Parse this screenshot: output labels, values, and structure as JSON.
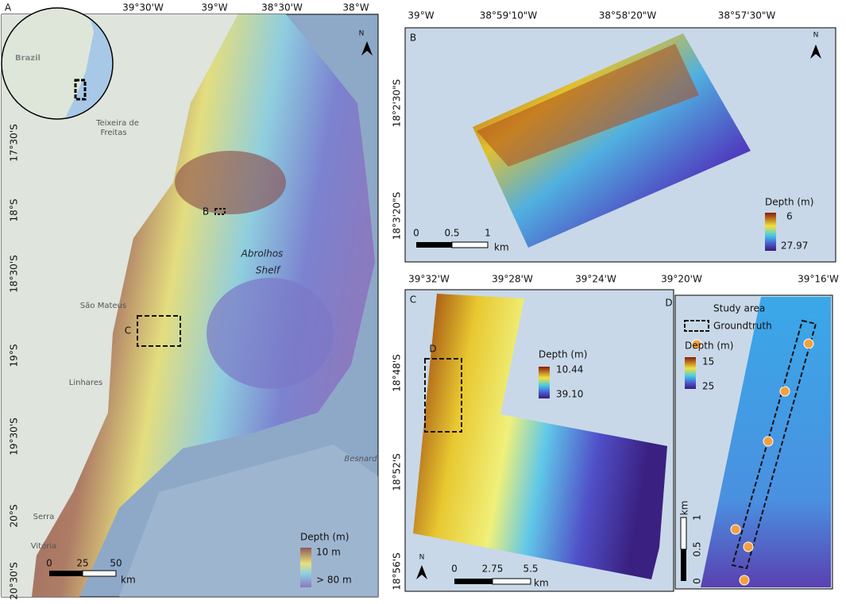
{
  "panel_a": {
    "label": "A",
    "top_ticks": [
      "39°30'W",
      "39°W",
      "38°30'W",
      "38°W"
    ],
    "left_ticks": [
      "17°30'S",
      "18°S",
      "18°30'S",
      "19°S",
      "19°30'S",
      "20°S",
      "20°30'S"
    ],
    "inset_label": "Brazil",
    "places": [
      "Teixeira de",
      "Freitas",
      "São Mateus",
      "Linhares",
      "Serra",
      "Vitória",
      "Besnard"
    ],
    "region": [
      "Abrolhos",
      "Shelf"
    ],
    "box_labels": [
      "B",
      "C"
    ],
    "north": "N",
    "legend": {
      "title": "Depth (m)",
      "max": "10 m",
      "min": "> 80 m"
    },
    "scale": {
      "ticks": [
        "0",
        "25",
        "50"
      ],
      "unit": "km"
    }
  },
  "panel_b": {
    "label": "B",
    "top_ticks": [
      "39°W",
      "38°59'10\"W",
      "38°58'20\"W",
      "38°57'30\"W"
    ],
    "left_ticks": [
      "18°2'30\"S",
      "18°3'20\"S"
    ],
    "north": "N",
    "legend": {
      "title": "Depth (m)",
      "max": "6",
      "min": "27.97"
    },
    "scale": {
      "ticks": [
        "0",
        "0.5",
        "1"
      ],
      "unit": "km"
    }
  },
  "panel_c": {
    "label": "C",
    "top_ticks": [
      "39°32'W",
      "39°28'W",
      "39°24'W",
      "39°20'W",
      "39°16'W"
    ],
    "left_ticks": [
      "18°48'S",
      "18°52'S",
      "18°56'S"
    ],
    "box_label": "D",
    "north": "N",
    "legend": {
      "title": "Depth (m)",
      "max": "10.44",
      "min": "39.10"
    },
    "scale": {
      "ticks": [
        "0",
        "2.75",
        "5.5"
      ],
      "unit": "km"
    }
  },
  "panel_d": {
    "label": "D",
    "legend": {
      "study_area": "Study area",
      "groundtruth": "Groundtruth",
      "title": "Depth (m)",
      "max": "15",
      "min": "25"
    },
    "scale": {
      "ticks": [
        "0",
        "0.5",
        "1"
      ],
      "unit": "km"
    }
  }
}
